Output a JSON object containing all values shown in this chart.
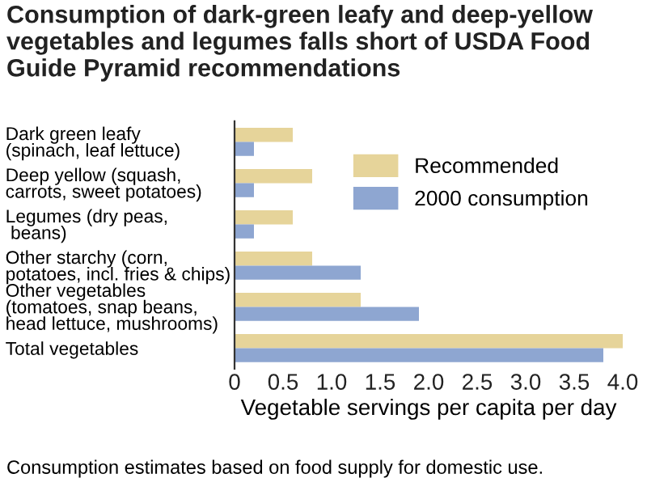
{
  "chart_data": {
    "type": "bar",
    "orientation": "horizontal",
    "title": "Consumption of dark-green leafy and deep-yellow vegetables and legumes falls short of USDA Food Guide Pyramid recommendations",
    "categories": [
      "Dark green leafy\n(spinach, leaf lettuce)",
      "Deep yellow (squash,\ncarrots, sweet potatoes)",
      "Legumes (dry peas,\n beans)",
      "Other starchy (corn,\npotatoes, incl. fries & chips)",
      "Other vegetables\n(tomatoes, snap beans,\nhead lettuce, mushrooms)",
      "Total vegetables"
    ],
    "series": [
      {
        "name": "Recommended",
        "color": "#e6d49a",
        "values": [
          0.6,
          0.8,
          0.6,
          0.8,
          1.3,
          4.0
        ]
      },
      {
        "name": "2000 consumption",
        "color": "#8ea6d1",
        "values": [
          0.2,
          0.2,
          0.2,
          1.3,
          1.9,
          3.8
        ]
      }
    ],
    "xlabel": "Vegetable servings per capita per day",
    "xlim": [
      0,
      4
    ],
    "xticks": [
      0,
      {
        "value": 0.5,
        "label": "0.5"
      },
      {
        "value": 1,
        "label": "1.0"
      },
      {
        "value": 1.5,
        "label": "1.5"
      },
      {
        "value": 2,
        "label": "2.0"
      },
      {
        "value": 2.5,
        "label": "2.5"
      },
      {
        "value": 3,
        "label": "3.0"
      },
      {
        "value": 3.5,
        "label": "3.5"
      },
      {
        "value": 4,
        "label": "4.0"
      }
    ],
    "legend": "top right",
    "grid": false,
    "annotations": [
      "Consumption estimates based on food supply for domestic use."
    ]
  }
}
